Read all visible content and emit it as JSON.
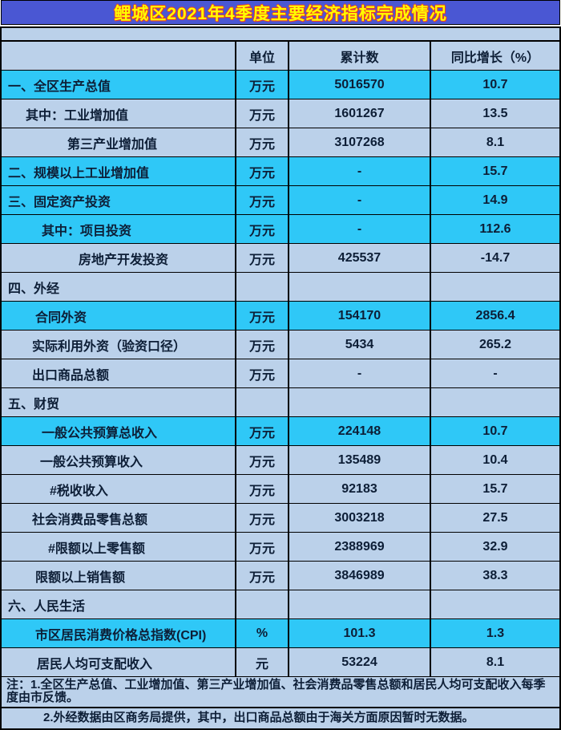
{
  "title": "鲤城区2021年4季度主要经济指标完成情况",
  "colors": {
    "title_bg": "#4a57d3",
    "title_text": "#ffff00",
    "title_outline": "#ef3b24",
    "row_highlight": "#2fc8f7",
    "row_light": "#bbd1ea",
    "text": "#0d1e36",
    "border": "#000000"
  },
  "table": {
    "headers": {
      "indicator": "",
      "unit": "单位",
      "cumulative": "累计数",
      "growth": "同比增长（%）"
    },
    "rows": [
      {
        "name": "一、全区生产总值",
        "unit": "万元",
        "value": "5016570",
        "growth": "10.7",
        "highlight": true,
        "indent": 8
      },
      {
        "name": "其中：工业增加值",
        "unit": "万元",
        "value": "1601267",
        "growth": "13.5",
        "highlight": false,
        "indent": 30
      },
      {
        "name": "第三产业增加值",
        "unit": "万元",
        "value": "3107268",
        "growth": "8.1",
        "highlight": false,
        "indent": 82
      },
      {
        "name": "二、规模以上工业增加值",
        "unit": "万元",
        "value": "-",
        "growth": "15.7",
        "highlight": true,
        "indent": 8
      },
      {
        "name": "三、固定资产投资",
        "unit": "万元",
        "value": "-",
        "growth": "14.9",
        "highlight": true,
        "indent": 8
      },
      {
        "name": "其中：项目投资",
        "unit": "万元",
        "value": "-",
        "growth": "112.6",
        "highlight": true,
        "indent": 50
      },
      {
        "name": "房地产开发投资",
        "unit": "万元",
        "value": "425537",
        "growth": "-14.7",
        "highlight": false,
        "indent": 96
      },
      {
        "name": "四、外经",
        "unit": "",
        "value": "",
        "growth": "",
        "highlight": false,
        "indent": 8
      },
      {
        "name": "合同外资",
        "unit": "万元",
        "value": "154170",
        "growth": "2856.4",
        "highlight": true,
        "indent": 42
      },
      {
        "name": "实际利用外资（验资口径）",
        "unit": "万元",
        "value": "5434",
        "growth": "265.2",
        "highlight": false,
        "indent": 38
      },
      {
        "name": "出口商品总额",
        "unit": "万元",
        "value": "-",
        "growth": "-",
        "highlight": false,
        "indent": 38
      },
      {
        "name": "五、财贸",
        "unit": "",
        "value": "",
        "growth": "",
        "highlight": false,
        "indent": 8
      },
      {
        "name": "一般公共预算总收入",
        "unit": "万元",
        "value": "224148",
        "growth": "10.7",
        "highlight": true,
        "indent": 50
      },
      {
        "name": "一般公共预算收入",
        "unit": "万元",
        "value": "135489",
        "growth": "10.4",
        "highlight": false,
        "indent": 48
      },
      {
        "name": "#税收收入",
        "unit": "万元",
        "value": "92183",
        "growth": "15.7",
        "highlight": false,
        "indent": 60
      },
      {
        "name": "社会消费品零售总额",
        "unit": "万元",
        "value": "3003218",
        "growth": "27.5",
        "highlight": false,
        "indent": 38
      },
      {
        "name": "#限额以上零售额",
        "unit": "万元",
        "value": "2388969",
        "growth": "32.9",
        "highlight": false,
        "indent": 58
      },
      {
        "name": "限额以上销售额",
        "unit": "万元",
        "value": "3846989",
        "growth": "38.3",
        "highlight": false,
        "indent": 42
      },
      {
        "name": "六、人民生活",
        "unit": "",
        "value": "",
        "growth": "",
        "highlight": false,
        "indent": 8
      },
      {
        "name": "市区居民消费价格总指数(CPI)",
        "unit": "%",
        "value": "101.3",
        "growth": "1.3",
        "highlight": true,
        "indent": 42
      },
      {
        "name": "居民人均可支配收入",
        "unit": "元",
        "value": "53224",
        "growth": "8.1",
        "highlight": false,
        "indent": 44
      }
    ]
  },
  "notes": [
    "注：1.全区生产总值、工业增加值、第三产业增加值、社会消费品零售总额和居民人均可支配收入每季度由市反馈。",
    "2.外经数据由区商务局提供，其中，出口商品总额由于海关方面原因暂时无数据。"
  ]
}
